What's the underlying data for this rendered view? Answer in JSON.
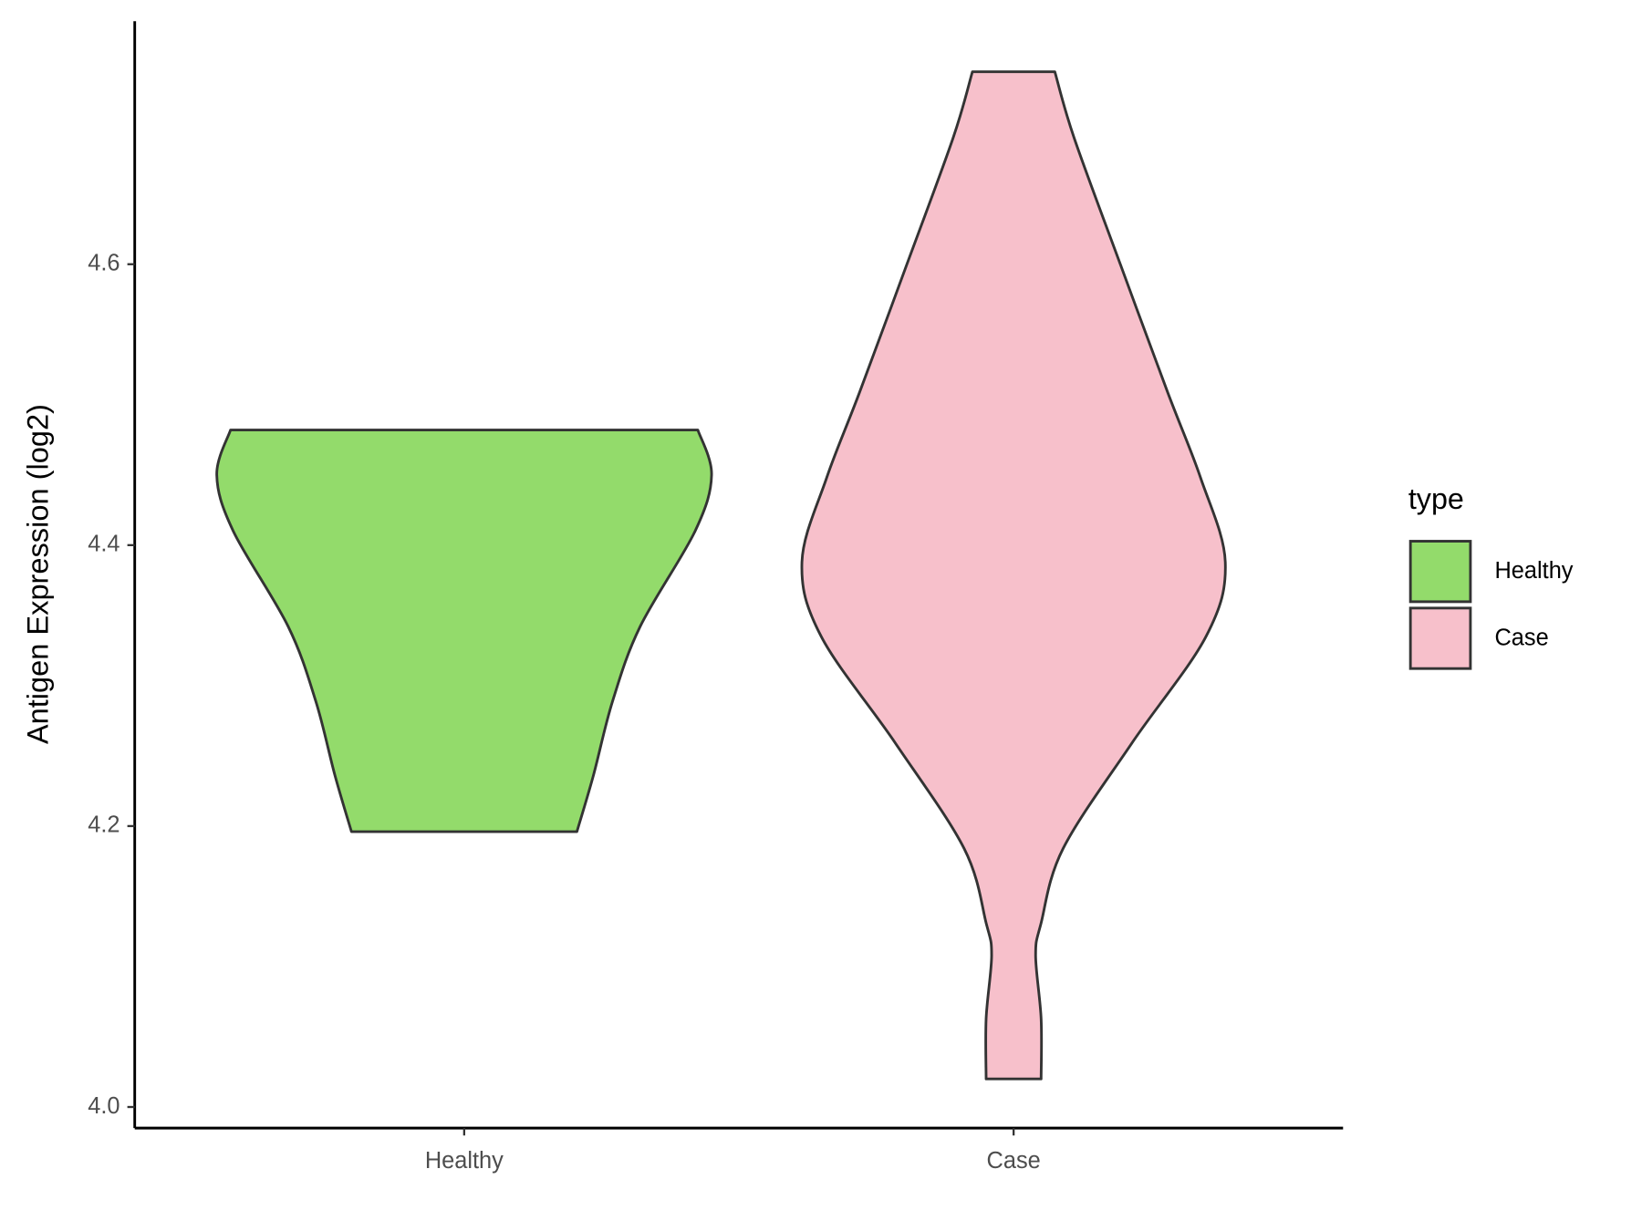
{
  "chart_data": {
    "type": "violin",
    "y_label": "Antigen Expression (log2)",
    "categories": [
      "Healthy",
      "Case"
    ],
    "ylim": [
      3.985,
      4.773
    ],
    "yticks": [
      {
        "value": 4,
        "label": "4.0"
      },
      4.2,
      4.4,
      4.6
    ],
    "legend_title": "type",
    "legend_position": "right",
    "series": [
      {
        "name": "Healthy",
        "color": "#93DB6B",
        "y": [
          4.482,
          4.45,
          4.41,
          4.342,
          4.289,
          4.236,
          4.196
        ],
        "width": [
          0.85,
          0.9,
          0.84,
          0.64,
          0.54,
          0.47,
          0.41
        ]
      },
      {
        "name": "Case",
        "color": "#F7C0CB",
        "y": [
          4.737,
          4.69,
          4.599,
          4.509,
          4.448,
          4.388,
          4.335,
          4.259,
          4.184,
          4.131,
          4.108,
          4.063,
          4.02
        ],
        "width": [
          0.15,
          0.22,
          0.39,
          0.56,
          0.68,
          0.77,
          0.7,
          0.43,
          0.18,
          0.1,
          0.08,
          0.1,
          0.1
        ]
      }
    ]
  }
}
